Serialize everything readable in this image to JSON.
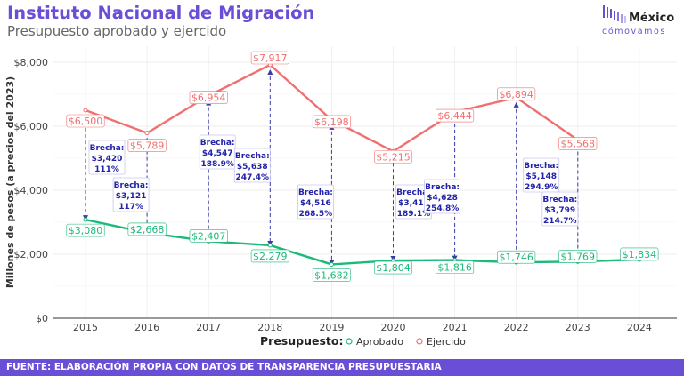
{
  "header": {
    "title": "Instituto Nacional de Migración",
    "subtitle": "Presupuesto aprobado y ejercido"
  },
  "logo": {
    "line1": "México",
    "line2": "cómovamos"
  },
  "footer": {
    "text": "FUENTE:  ELABORACIÓN PROPIA CON DATOS DE TRANSPARENCIA PRESUPUESTARIA"
  },
  "colors": {
    "aprobado": "#1db97a",
    "ejercido": "#f07070",
    "gap_line": "#3a3aa8",
    "accent": "#6a4fd6"
  },
  "chart_data": {
    "type": "line",
    "x": [
      2015,
      2016,
      2017,
      2018,
      2019,
      2020,
      2021,
      2022,
      2023,
      2024
    ],
    "ylabel": "Millones de pesos (a precios del 2023)",
    "ylim": [
      0,
      8500
    ],
    "yticks": [
      0,
      2000,
      4000,
      6000,
      8000
    ],
    "ytick_labels": [
      "$0",
      "$2,000",
      "$4,000",
      "$6,000",
      "$8,000"
    ],
    "grid": true,
    "legend": {
      "title": "Presupuesto:",
      "position": "bottom"
    },
    "series": [
      {
        "name": "Aprobado",
        "values": [
          3080,
          2668,
          2407,
          2279,
          1682,
          1804,
          1816,
          1746,
          1769,
          1834
        ],
        "labels": [
          "$3,080",
          "$2,668",
          "$2,407",
          "$2,279",
          "$1,682",
          "$1,804",
          "$1,816",
          "$1,746",
          "$1,769",
          "$1,834"
        ]
      },
      {
        "name": "Ejercido",
        "values": [
          6500,
          5789,
          6954,
          7917,
          6198,
          5215,
          6444,
          6894,
          5568,
          null
        ],
        "labels": [
          "$6,500",
          "$5,789",
          "$6,954",
          "$7,917",
          "$6,198",
          "$5,215",
          "$6,444",
          "$6,894",
          "$5,568",
          null
        ]
      }
    ],
    "gaps": [
      {
        "label": "Brecha:",
        "amount": "$3,420",
        "pct": "111%"
      },
      {
        "label": "Brecha:",
        "amount": "$3,121",
        "pct": "117%"
      },
      {
        "label": "Brecha:",
        "amount": "$4,547",
        "pct": "188.9%"
      },
      {
        "label": "Brecha:",
        "amount": "$5,638",
        "pct": "247.4%"
      },
      {
        "label": "Brecha:",
        "amount": "$4,516",
        "pct": "268.5%"
      },
      {
        "label": "Brecha:",
        "amount": "$3,411",
        "pct": "189.1%"
      },
      {
        "label": "Brecha:",
        "amount": "$4,628",
        "pct": "254.8%"
      },
      {
        "label": "Brecha:",
        "amount": "$5,148",
        "pct": "294.9%"
      },
      {
        "label": "Brecha:",
        "amount": "$3,799",
        "pct": "214.7%"
      }
    ]
  }
}
